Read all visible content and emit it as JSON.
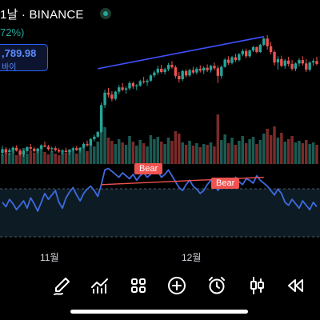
{
  "header": {
    "title": "1날 · BINANCE",
    "change": "72%)"
  },
  "buy_box": {
    "price": ",789.98",
    "label": "바이"
  },
  "indicators": {
    "bear_label_1": "Bear",
    "bear_label_2": "Bear"
  },
  "x_axis": {
    "label_nov": "11월",
    "label_dec": "12월"
  },
  "toolbar": {
    "items": [
      {
        "name": "draw-icon"
      },
      {
        "name": "indicators-icon"
      },
      {
        "name": "layouts-icon"
      },
      {
        "name": "add-icon"
      },
      {
        "name": "alert-icon"
      },
      {
        "name": "chart-type-icon"
      },
      {
        "name": "replay-icon"
      }
    ]
  },
  "colors": {
    "up": "#26a69a",
    "down": "#ef5350",
    "trendline": "#3f51ff",
    "rsi": "#3d6be0",
    "bear": "#ef5350"
  },
  "chart_data": [
    {
      "type": "candlestick",
      "series": [
        {
          "name": "price",
          "ohlc": [
            [
              100,
              101.5,
              99.4,
              100.8
            ],
            [
              100.8,
              101.2,
              99.8,
              100.2
            ],
            [
              100.2,
              101,
              99.5,
              100.6
            ],
            [
              100.6,
              101.4,
              100,
              101.1
            ],
            [
              101.1,
              101.6,
              100.3,
              100.5
            ],
            [
              100.5,
              100.9,
              99.4,
              99.7
            ],
            [
              99.7,
              100.6,
              99.2,
              100.4
            ],
            [
              100.4,
              101.4,
              100,
              101.2
            ],
            [
              101.2,
              101.9,
              100.6,
              100.9
            ],
            [
              100.9,
              101.2,
              100.1,
              100.4
            ],
            [
              100.4,
              101.1,
              99.9,
              100.9
            ],
            [
              100.9,
              101.8,
              100.6,
              101.6
            ],
            [
              101.6,
              102.4,
              101.2,
              101.3
            ],
            [
              101.3,
              101.7,
              100.5,
              100.8
            ],
            [
              100.8,
              101.3,
              100.2,
              101
            ],
            [
              101,
              101.4,
              100.3,
              100.6
            ],
            [
              100.6,
              101,
              100,
              100.3
            ],
            [
              100.3,
              100.8,
              99.7,
              100.5
            ],
            [
              100.5,
              101.1,
              100.1,
              100.2
            ],
            [
              100.2,
              100.8,
              99.6,
              100.7
            ],
            [
              100.7,
              101.3,
              100.3,
              101
            ],
            [
              101,
              101.5,
              100.4,
              100.6
            ],
            [
              100.6,
              101.2,
              100.1,
              101.1
            ],
            [
              101.1,
              102.2,
              100.9,
              101.9
            ],
            [
              101.9,
              102.6,
              101.3,
              101.6
            ],
            [
              101.6,
              103.1,
              101.4,
              102.9
            ],
            [
              102.9,
              103.8,
              102.4,
              103.4
            ],
            [
              103.4,
              104.6,
              103.1,
              104.4
            ],
            [
              104.4,
              110.5,
              104.2,
              110
            ],
            [
              110,
              113.2,
              109.4,
              112.6
            ],
            [
              112.6,
              113.6,
              111.6,
              112.2
            ],
            [
              112.2,
              112.9,
              110.8,
              111.3
            ],
            [
              111.3,
              113,
              111,
              112.8
            ],
            [
              112.8,
              114.2,
              112.3,
              113.7
            ],
            [
              113.7,
              114.6,
              112.9,
              113.2
            ],
            [
              113.2,
              113.9,
              112.4,
              113.5
            ],
            [
              113.5,
              115,
              113.1,
              114.6
            ],
            [
              114.6,
              114.9,
              113.4,
              113.9
            ],
            [
              113.9,
              114.4,
              113.1,
              114.1
            ],
            [
              114.1,
              115.3,
              113.8,
              115
            ],
            [
              115,
              115.9,
              114.5,
              114.8
            ],
            [
              114.8,
              115.4,
              114,
              115.1
            ],
            [
              115.1,
              116.4,
              114.9,
              116.2
            ],
            [
              116.2,
              117.2,
              115.8,
              116.8
            ],
            [
              116.8,
              118.2,
              116.3,
              117.6
            ],
            [
              117.6,
              118.4,
              116.6,
              116.9
            ],
            [
              116.9,
              117.8,
              116.4,
              117.5
            ],
            [
              117.5,
              118.8,
              117.1,
              118.4
            ],
            [
              118.4,
              119.2,
              117.6,
              117.9
            ],
            [
              117.9,
              118.3,
              115.6,
              116.1
            ],
            [
              116.1,
              116.9,
              114.7,
              115.4
            ],
            [
              115.4,
              117.4,
              115,
              117.1
            ],
            [
              117.1,
              117.5,
              115.8,
              116.2
            ],
            [
              116.2,
              117.6,
              115.9,
              117.3
            ],
            [
              117.3,
              118,
              116.4,
              116.8
            ],
            [
              116.8,
              117.9,
              116.4,
              117.6
            ],
            [
              117.6,
              118.3,
              116.8,
              117.2
            ],
            [
              117.2,
              118.1,
              116.5,
              117.8
            ],
            [
              117.8,
              118.5,
              116.9,
              117.3
            ],
            [
              117.3,
              118.4,
              116.8,
              118.2
            ],
            [
              118.2,
              118.9,
              117.3,
              117.7
            ],
            [
              117.7,
              118.2,
              114.6,
              116.1
            ],
            [
              116.1,
              118.3,
              115.5,
              118
            ],
            [
              118,
              119.8,
              117.8,
              119.5
            ],
            [
              119.5,
              120.2,
              118.4,
              118.8
            ],
            [
              118.8,
              120.3,
              118.5,
              120
            ],
            [
              120,
              120.7,
              119,
              119.4
            ],
            [
              119.4,
              120.9,
              119.1,
              120.6
            ],
            [
              120.6,
              121.7,
              120.2,
              121.3
            ],
            [
              121.3,
              121.8,
              119.8,
              120.2
            ],
            [
              120.2,
              121.6,
              119.9,
              121.4
            ],
            [
              121.4,
              122.4,
              121.1,
              122.1
            ],
            [
              122.1,
              122.3,
              120.8,
              121.1
            ],
            [
              121.1,
              122.8,
              120.9,
              122.6
            ],
            [
              122.6,
              124.2,
              122.3,
              123.9
            ],
            [
              123.9,
              124.6,
              121.6,
              122.3
            ],
            [
              122.3,
              123.2,
              120.6,
              121.1
            ],
            [
              121.1,
              121.4,
              118.3,
              118.9
            ],
            [
              118.9,
              120.2,
              117.4,
              119.6
            ],
            [
              119.6,
              120.3,
              117.9,
              118.2
            ],
            [
              118.2,
              119.6,
              117.6,
              119.3
            ],
            [
              119.3,
              120.1,
              118.1,
              118.6
            ],
            [
              118.6,
              119.4,
              117.2,
              117.6
            ],
            [
              117.6,
              118.9,
              117.1,
              118.7
            ],
            [
              118.7,
              119.8,
              118.1,
              119.4
            ],
            [
              119.4,
              120.2,
              118.3,
              118.7
            ],
            [
              118.7,
              119.6,
              116.9,
              117.4
            ],
            [
              117.4,
              119.2,
              117,
              118.9
            ],
            [
              118.9,
              119.7,
              118.2,
              119.2
            ],
            [
              119.2,
              120.1,
              118.3,
              118.6
            ]
          ]
        }
      ],
      "volume": [
        12,
        16,
        14,
        19,
        11,
        15,
        20,
        13,
        17,
        14,
        18,
        22,
        15,
        12,
        16,
        13,
        11,
        17,
        14,
        15,
        19,
        13,
        18,
        21,
        16,
        24,
        22,
        28,
        58,
        46,
        33,
        29,
        25,
        31,
        27,
        24,
        35,
        28,
        23,
        30,
        26,
        22,
        36,
        31,
        34,
        28,
        25,
        33,
        29,
        41,
        38,
        27,
        24,
        29,
        23,
        26,
        21,
        25,
        24,
        27,
        22,
        62,
        30,
        37,
        26,
        33,
        24,
        29,
        35,
        26,
        31,
        34,
        25,
        30,
        38,
        44,
        36,
        47,
        33,
        39,
        28,
        31,
        35,
        27,
        29,
        26,
        30,
        25,
        27,
        24
      ],
      "trendlines": [
        {
          "from_index": 27,
          "to_index": 74,
          "from_price": 117.6,
          "to_price": 124.3
        }
      ]
    },
    {
      "type": "line",
      "series": [
        {
          "name": "",
          "values": [
            52,
            49,
            54,
            51,
            47,
            50,
            53,
            48,
            55,
            51,
            46,
            52,
            58,
            54,
            57,
            60,
            52,
            48,
            55,
            59,
            62,
            57,
            53,
            58,
            61,
            63,
            60,
            56,
            64,
            74,
            75,
            73,
            71,
            69,
            72,
            70,
            68,
            71,
            67,
            70,
            72,
            69,
            71,
            75,
            73,
            69,
            71,
            74,
            70,
            66,
            62,
            60,
            64,
            67,
            63,
            61,
            58,
            60,
            64,
            67,
            65,
            60,
            63,
            66,
            68,
            65,
            69,
            66,
            64,
            68,
            67,
            65,
            70,
            67,
            65,
            63,
            60,
            57,
            61,
            58,
            52,
            50,
            54,
            51,
            48,
            53,
            50,
            47,
            52,
            49
          ]
        }
      ],
      "annotations": [
        "Bear",
        "Bear"
      ]
    }
  ]
}
